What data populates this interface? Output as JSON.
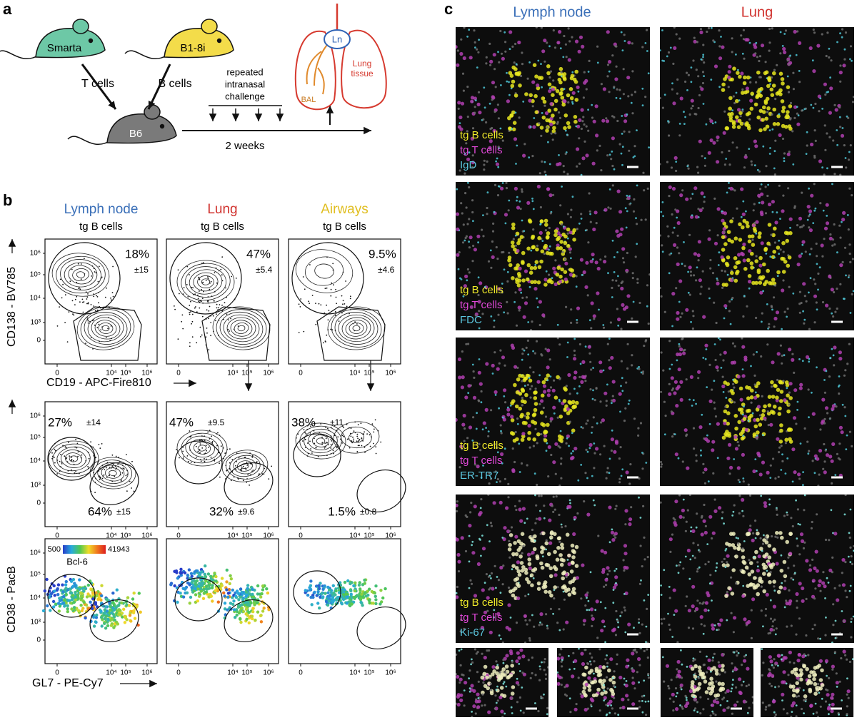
{
  "panel_a": {
    "label": "a",
    "mice": [
      "Smarta",
      "B1-8i",
      "B6"
    ],
    "cells": [
      "T cells",
      "B cells"
    ],
    "challenge": [
      "repeated",
      "intranasal",
      "challenge"
    ],
    "duration": "2 weeks",
    "organ": {
      "ln": "Ln",
      "bal": "BAL",
      "lung": [
        "Lung",
        "tissue"
      ]
    }
  },
  "panel_b": {
    "label": "b",
    "columns": [
      {
        "title": "Lymph node",
        "subtitle": "tg B cells"
      },
      {
        "title": "Lung",
        "subtitle": "tg B cells"
      },
      {
        "title": "Airways",
        "subtitle": "tg B cells"
      }
    ],
    "axes": {
      "cd138": "CD138 - BV785",
      "cd19": "CD19 - APC-Fire810",
      "cd38": "CD38 - PacB",
      "gl7": "GL7 - PE-Cy7"
    },
    "yticks": [
      "10⁶",
      "10⁵",
      "10⁴",
      "10³",
      "0"
    ],
    "xticks": [
      "0",
      "10⁴",
      "10⁵",
      "10⁶"
    ],
    "plasma_gate": [
      [
        "18%",
        "±15"
      ],
      [
        "47%",
        "±5.4"
      ],
      [
        "9.5%",
        "±4.6"
      ]
    ],
    "gc_gate": [
      {
        "top": [
          "27%",
          "±14"
        ],
        "bottom": [
          "64%",
          "±15"
        ]
      },
      {
        "top": [
          "47%",
          "±9.5"
        ],
        "bottom": [
          "32%",
          "±9.6"
        ]
      },
      {
        "top": [
          "38%",
          "±11"
        ],
        "bottom": [
          "1.5%",
          "±0.8"
        ]
      }
    ],
    "colorbar": {
      "min": "500",
      "max": "41943",
      "label": "Bcl-6"
    }
  },
  "panel_c": {
    "label": "c",
    "columns": [
      "Lymph node",
      "Lung"
    ],
    "rows": [
      {
        "legend": [
          "tg B cells",
          "tg T cells",
          "IgD"
        ]
      },
      {
        "legend": [
          "tg B cells",
          "tg T cells",
          "FDC"
        ]
      },
      {
        "legend": [
          "tg B cells",
          "tg T cells",
          "ER-TR7"
        ]
      },
      {
        "legend": [
          "tg B cells",
          "tg T cells",
          "Ki-67"
        ]
      }
    ]
  }
}
